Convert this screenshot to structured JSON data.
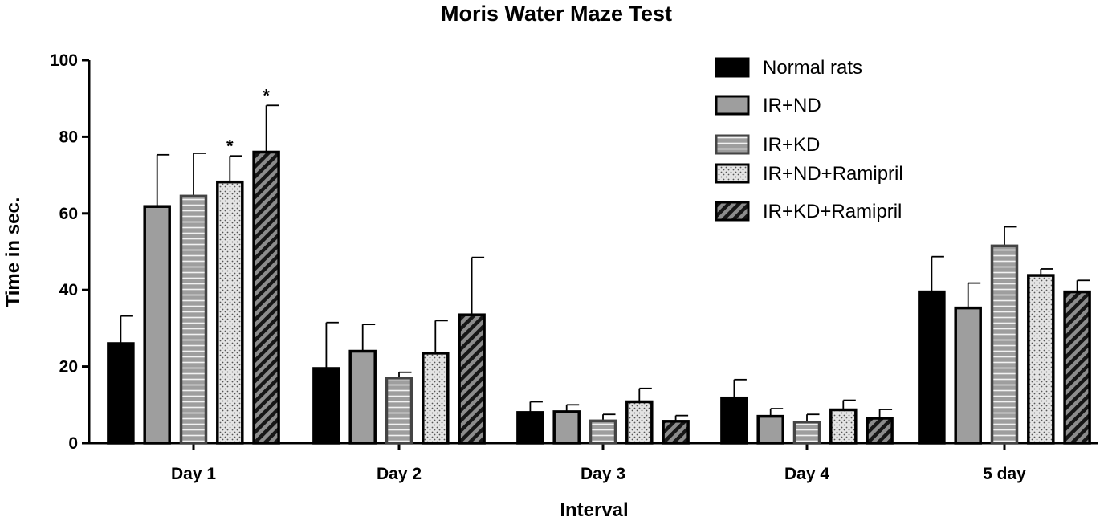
{
  "chart_data": {
    "type": "bar",
    "title": "Moris Water Maze Test",
    "xlabel": "Interval",
    "ylabel": "Time in sec.",
    "ylim": [
      0,
      100
    ],
    "yticks": [
      "0",
      "20",
      "40",
      "60",
      "80",
      "100"
    ],
    "categories": [
      "Day 1",
      "Day 2",
      "Day 3",
      "Day 4",
      "5 day"
    ],
    "grid": false,
    "legend_position": "top-right",
    "series": [
      {
        "name": "Normal rats",
        "fill": "#000000",
        "pattern": "solid",
        "values": [
          26,
          19.5,
          8,
          11.8,
          39.5
        ],
        "errors": [
          7.2,
          12,
          2.8,
          4.8,
          9.2
        ]
      },
      {
        "name": "IR+ND",
        "fill": "#9e9e9e",
        "pattern": "solid",
        "values": [
          61.8,
          24,
          8.2,
          7,
          35.3
        ],
        "errors": [
          13.5,
          7,
          1.8,
          2,
          6.5
        ]
      },
      {
        "name": "IR+KD",
        "fill": "#9e9e9e",
        "pattern": "horizontal-lines",
        "values": [
          64.5,
          17,
          5.8,
          5.5,
          51.5
        ],
        "errors": [
          11.2,
          1.5,
          1.7,
          2,
          5
        ]
      },
      {
        "name": "IR+ND+Ramipril",
        "fill": "#e4e4e4",
        "pattern": "dots",
        "values": [
          68.2,
          23.5,
          10.8,
          8.7,
          43.8
        ],
        "errors": [
          6.8,
          8.5,
          3.5,
          2.5,
          1.7
        ]
      },
      {
        "name": "IR+KD+Ramipril",
        "fill": "#9e9e9e",
        "pattern": "diagonal-lines",
        "values": [
          76,
          33.5,
          5.7,
          6.5,
          39.5
        ],
        "errors": [
          12.2,
          15,
          1.5,
          2.3,
          3
        ]
      }
    ],
    "annotations": [
      {
        "text": "*",
        "category": "Day 1",
        "series": "IR+ND+Ramipril"
      },
      {
        "text": "*",
        "category": "Day 1",
        "series": "IR+KD+Ramipril"
      }
    ]
  }
}
